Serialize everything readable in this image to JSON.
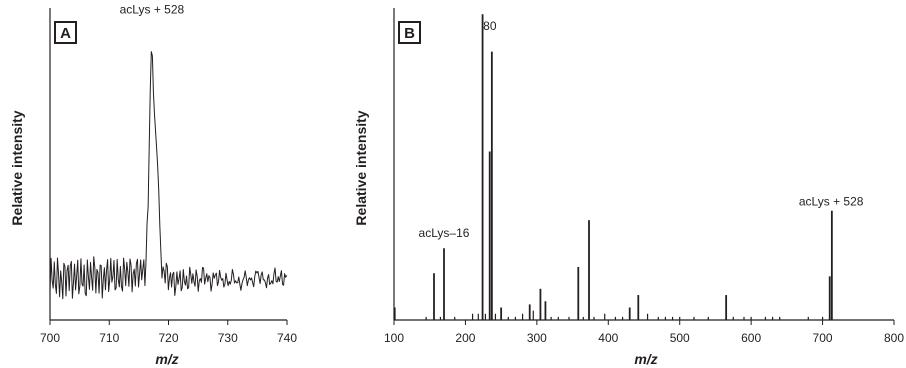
{
  "chart_data": [
    {
      "panel": "A",
      "type": "line",
      "xlabel": "m/z",
      "ylabel": "Relative intensity",
      "xlim": [
        700,
        740
      ],
      "ylim": [
        0,
        1
      ],
      "xticks": [
        700,
        710,
        720,
        730,
        740
      ],
      "annotations": [
        {
          "text": "acLys + 528",
          "x": 717.2,
          "y": 0.97
        }
      ],
      "series": [
        {
          "x": [
            700,
            701,
            702,
            703,
            704,
            705,
            706,
            707,
            708,
            709,
            710,
            711,
            712,
            713,
            714,
            715,
            716,
            716.5,
            717,
            717.2,
            717.5,
            718,
            718.3,
            718.7,
            719,
            720,
            721,
            722,
            723,
            724,
            725,
            726,
            727,
            728,
            729,
            730,
            731,
            732,
            733,
            734,
            735,
            736,
            737,
            738,
            739,
            740
          ],
          "y": [
            0.13,
            0.14,
            0.12,
            0.15,
            0.13,
            0.14,
            0.12,
            0.15,
            0.14,
            0.13,
            0.15,
            0.14,
            0.13,
            0.16,
            0.14,
            0.16,
            0.15,
            0.3,
            0.82,
            0.9,
            0.7,
            0.55,
            0.45,
            0.2,
            0.16,
            0.14,
            0.12,
            0.13,
            0.12,
            0.14,
            0.12,
            0.15,
            0.12,
            0.14,
            0.13,
            0.12,
            0.14,
            0.11,
            0.14,
            0.12,
            0.15,
            0.13,
            0.12,
            0.14,
            0.13,
            0.14
          ]
        }
      ]
    },
    {
      "panel": "B",
      "type": "bar",
      "xlabel": "m/z",
      "ylabel": "Relative intensity",
      "xlim": [
        100,
        800
      ],
      "ylim": [
        0,
        1
      ],
      "xticks": [
        100,
        200,
        300,
        400,
        500,
        600,
        700,
        800
      ],
      "annotations": [
        {
          "text": "80",
          "x": 236,
          "y": 0.93
        },
        {
          "text": "acLys–16",
          "x": 170,
          "y": 0.26
        },
        {
          "text": "acLys + 528",
          "x": 712,
          "y": 0.36
        }
      ],
      "peaks": {
        "x": [
          101,
          156,
          170,
          224,
          234,
          237,
          250,
          290,
          305,
          312,
          358,
          373,
          430,
          442,
          565,
          710,
          713
        ],
        "y": [
          0.04,
          0.15,
          0.23,
          0.98,
          0.54,
          0.86,
          0.04,
          0.05,
          0.1,
          0.06,
          0.17,
          0.32,
          0.04,
          0.08,
          0.08,
          0.14,
          0.35
        ]
      },
      "noise": {
        "x": [
          145,
          165,
          185,
          210,
          218,
          228,
          242,
          260,
          270,
          280,
          295,
          320,
          330,
          345,
          365,
          380,
          395,
          410,
          420,
          455,
          470,
          480,
          490,
          500,
          520,
          540,
          575,
          590,
          600,
          620,
          630,
          640,
          680,
          700
        ],
        "y": [
          0.01,
          0.01,
          0.01,
          0.02,
          0.02,
          0.02,
          0.02,
          0.01,
          0.01,
          0.02,
          0.03,
          0.01,
          0.01,
          0.01,
          0.01,
          0.01,
          0.02,
          0.01,
          0.01,
          0.02,
          0.01,
          0.01,
          0.01,
          0.01,
          0.01,
          0.01,
          0.01,
          0.01,
          0.01,
          0.01,
          0.01,
          0.01,
          0.01,
          0.01
        ]
      }
    }
  ]
}
